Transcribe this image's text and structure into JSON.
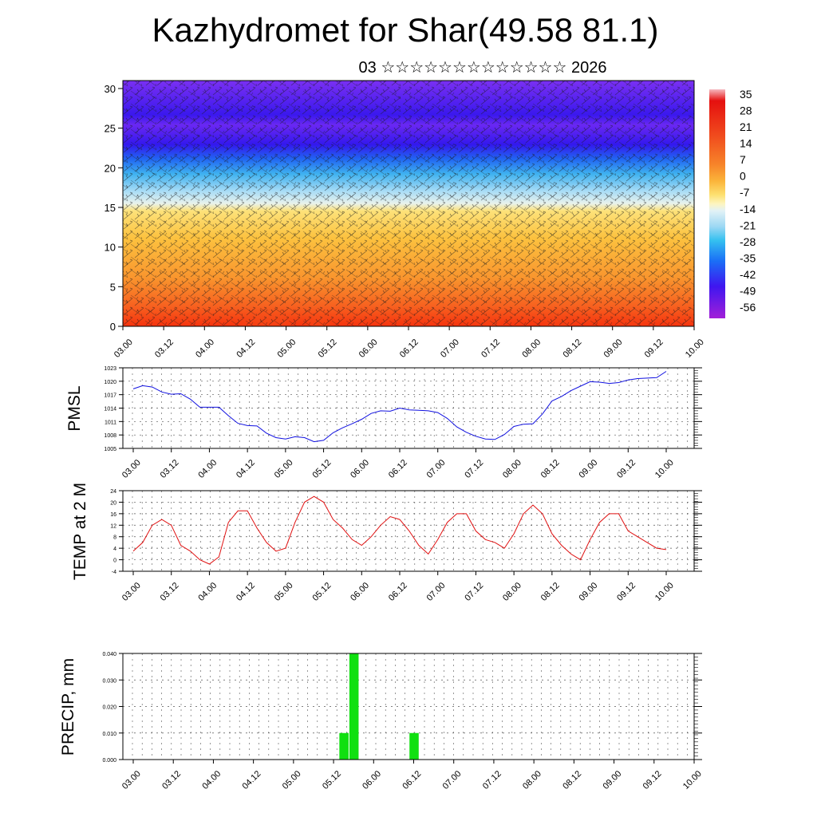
{
  "title": "Kazhydromet for Shar(49.58 81.1)",
  "subtitle": "03 ☆☆☆☆☆☆☆☆☆☆☆☆☆ 2026",
  "chart_data": [
    {
      "type": "heatmap",
      "title": "",
      "ylim": [
        0,
        31
      ],
      "y_ticks": [
        "0",
        "5",
        "10",
        "15",
        "20",
        "25",
        "30"
      ],
      "x_ticks": [
        "03.00",
        "03.12",
        "04.00",
        "04.12",
        "05.00",
        "05.12",
        "06.00",
        "06.12",
        "07.00",
        "07.12",
        "08.00",
        "08.12",
        "09.00",
        "09.12",
        "10.00"
      ],
      "colorbar_labels": [
        "35",
        "28",
        "21",
        "14",
        "7",
        "0",
        "-7",
        "-14",
        "-21",
        "-28",
        "-35",
        "-42",
        "-49",
        "-56"
      ],
      "overlay": "wind barbs",
      "colorscale": [
        "#a21fd8",
        "#3f16f0",
        "#1a6ef6",
        "#34c0f0",
        "#d8f1f8",
        "#fdf5c0",
        "#fde070",
        "#fbb43a",
        "#f7852a",
        "#f04a1d",
        "#e5100f"
      ]
    },
    {
      "type": "line",
      "ylabel": "PMSL",
      "ylim": [
        1005,
        1023
      ],
      "y_ticks": [
        "1005",
        "1008",
        "1011",
        "1014",
        "1017",
        "1020",
        "1023"
      ],
      "x_ticks": [
        "03.00",
        "03.12",
        "04.00",
        "04.12",
        "05.00",
        "05.12",
        "06.00",
        "06.12",
        "07.00",
        "07.12",
        "08.00",
        "08.12",
        "09.00",
        "09.12",
        "10.00"
      ],
      "color": "#1010e0",
      "x": [
        0,
        1,
        2,
        3,
        4,
        5,
        6,
        7,
        8,
        9,
        10,
        11,
        12,
        13,
        14,
        15,
        16,
        17,
        18,
        19,
        20,
        21,
        22,
        23,
        24,
        25,
        26,
        27,
        28,
        29,
        30,
        31,
        32,
        33,
        34,
        35,
        36,
        37,
        38,
        39,
        40,
        41,
        42,
        43,
        44,
        45,
        46,
        47,
        48,
        49,
        50,
        51,
        52,
        53,
        54,
        55,
        56
      ],
      "values": [
        1018.3,
        1019.0,
        1018.7,
        1017.6,
        1017.1,
        1017.2,
        1016.0,
        1014.2,
        1014.2,
        1014.2,
        1012.3,
        1010.6,
        1010.1,
        1010.0,
        1008.4,
        1007.4,
        1007.1,
        1007.6,
        1007.4,
        1006.5,
        1006.8,
        1008.5,
        1009.6,
        1010.5,
        1011.5,
        1012.8,
        1013.4,
        1013.3,
        1014.0,
        1013.6,
        1013.5,
        1013.4,
        1013.0,
        1011.7,
        1009.8,
        1008.6,
        1007.7,
        1007.1,
        1007.0,
        1008.1,
        1009.9,
        1010.4,
        1010.5,
        1012.7,
        1015.6,
        1016.6,
        1017.9,
        1018.9,
        1019.9,
        1019.8,
        1019.5,
        1019.7,
        1020.3,
        1020.6,
        1020.7,
        1020.8,
        1022.2
      ]
    },
    {
      "type": "line",
      "ylabel": "TEMP at 2 M",
      "ylim": [
        -4,
        24
      ],
      "y_ticks": [
        "-4",
        "0",
        "4",
        "8",
        "12",
        "16",
        "20",
        "24"
      ],
      "x_ticks": [
        "03.00",
        "03.12",
        "04.00",
        "04.12",
        "05.00",
        "05.12",
        "06.00",
        "06.12",
        "07.00",
        "07.12",
        "08.00",
        "08.12",
        "09.00",
        "09.12",
        "10.00"
      ],
      "color": "#e01010",
      "x": [
        0,
        1,
        2,
        3,
        4,
        5,
        6,
        7,
        8,
        9,
        10,
        11,
        12,
        13,
        14,
        15,
        16,
        17,
        18,
        19,
        20,
        21,
        22,
        23,
        24,
        25,
        26,
        27,
        28,
        29,
        30,
        31,
        32,
        33,
        34,
        35,
        36,
        37,
        38,
        39,
        40,
        41,
        42,
        43,
        44,
        45,
        46,
        47,
        48,
        49,
        50,
        51,
        52,
        53,
        54,
        55,
        56
      ],
      "values": [
        3,
        6,
        12,
        14,
        12,
        5,
        3,
        0,
        -1.5,
        1,
        13,
        17,
        17,
        11,
        6,
        3,
        4,
        13,
        20,
        22,
        20,
        14,
        11,
        7,
        5,
        8,
        12,
        15,
        14,
        10,
        5,
        2,
        7,
        13,
        16,
        16,
        10,
        7,
        6,
        4,
        9,
        16,
        19,
        16,
        9,
        5,
        2,
        0,
        7,
        13,
        16,
        16,
        10,
        8,
        6,
        4,
        3.5
      ]
    },
    {
      "type": "bar",
      "ylabel": "PRECIP, mm",
      "ylim": [
        0,
        0.04
      ],
      "y_ticks": [
        "0.000",
        "0.010",
        "0.020",
        "0.030",
        "0.040"
      ],
      "x_ticks": [
        "03.00",
        "03.12",
        "04.00",
        "04.12",
        "05.00",
        "05.12",
        "06.00",
        "06.12",
        "07.00",
        "07.12",
        "08.00",
        "08.12",
        "09.00",
        "09.12",
        "10.00"
      ],
      "color": "#10e010",
      "bars": [
        {
          "x": 21,
          "value": 0.01
        },
        {
          "x": 22,
          "value": 0.04
        },
        {
          "x": 28,
          "value": 0.01
        }
      ]
    }
  ]
}
